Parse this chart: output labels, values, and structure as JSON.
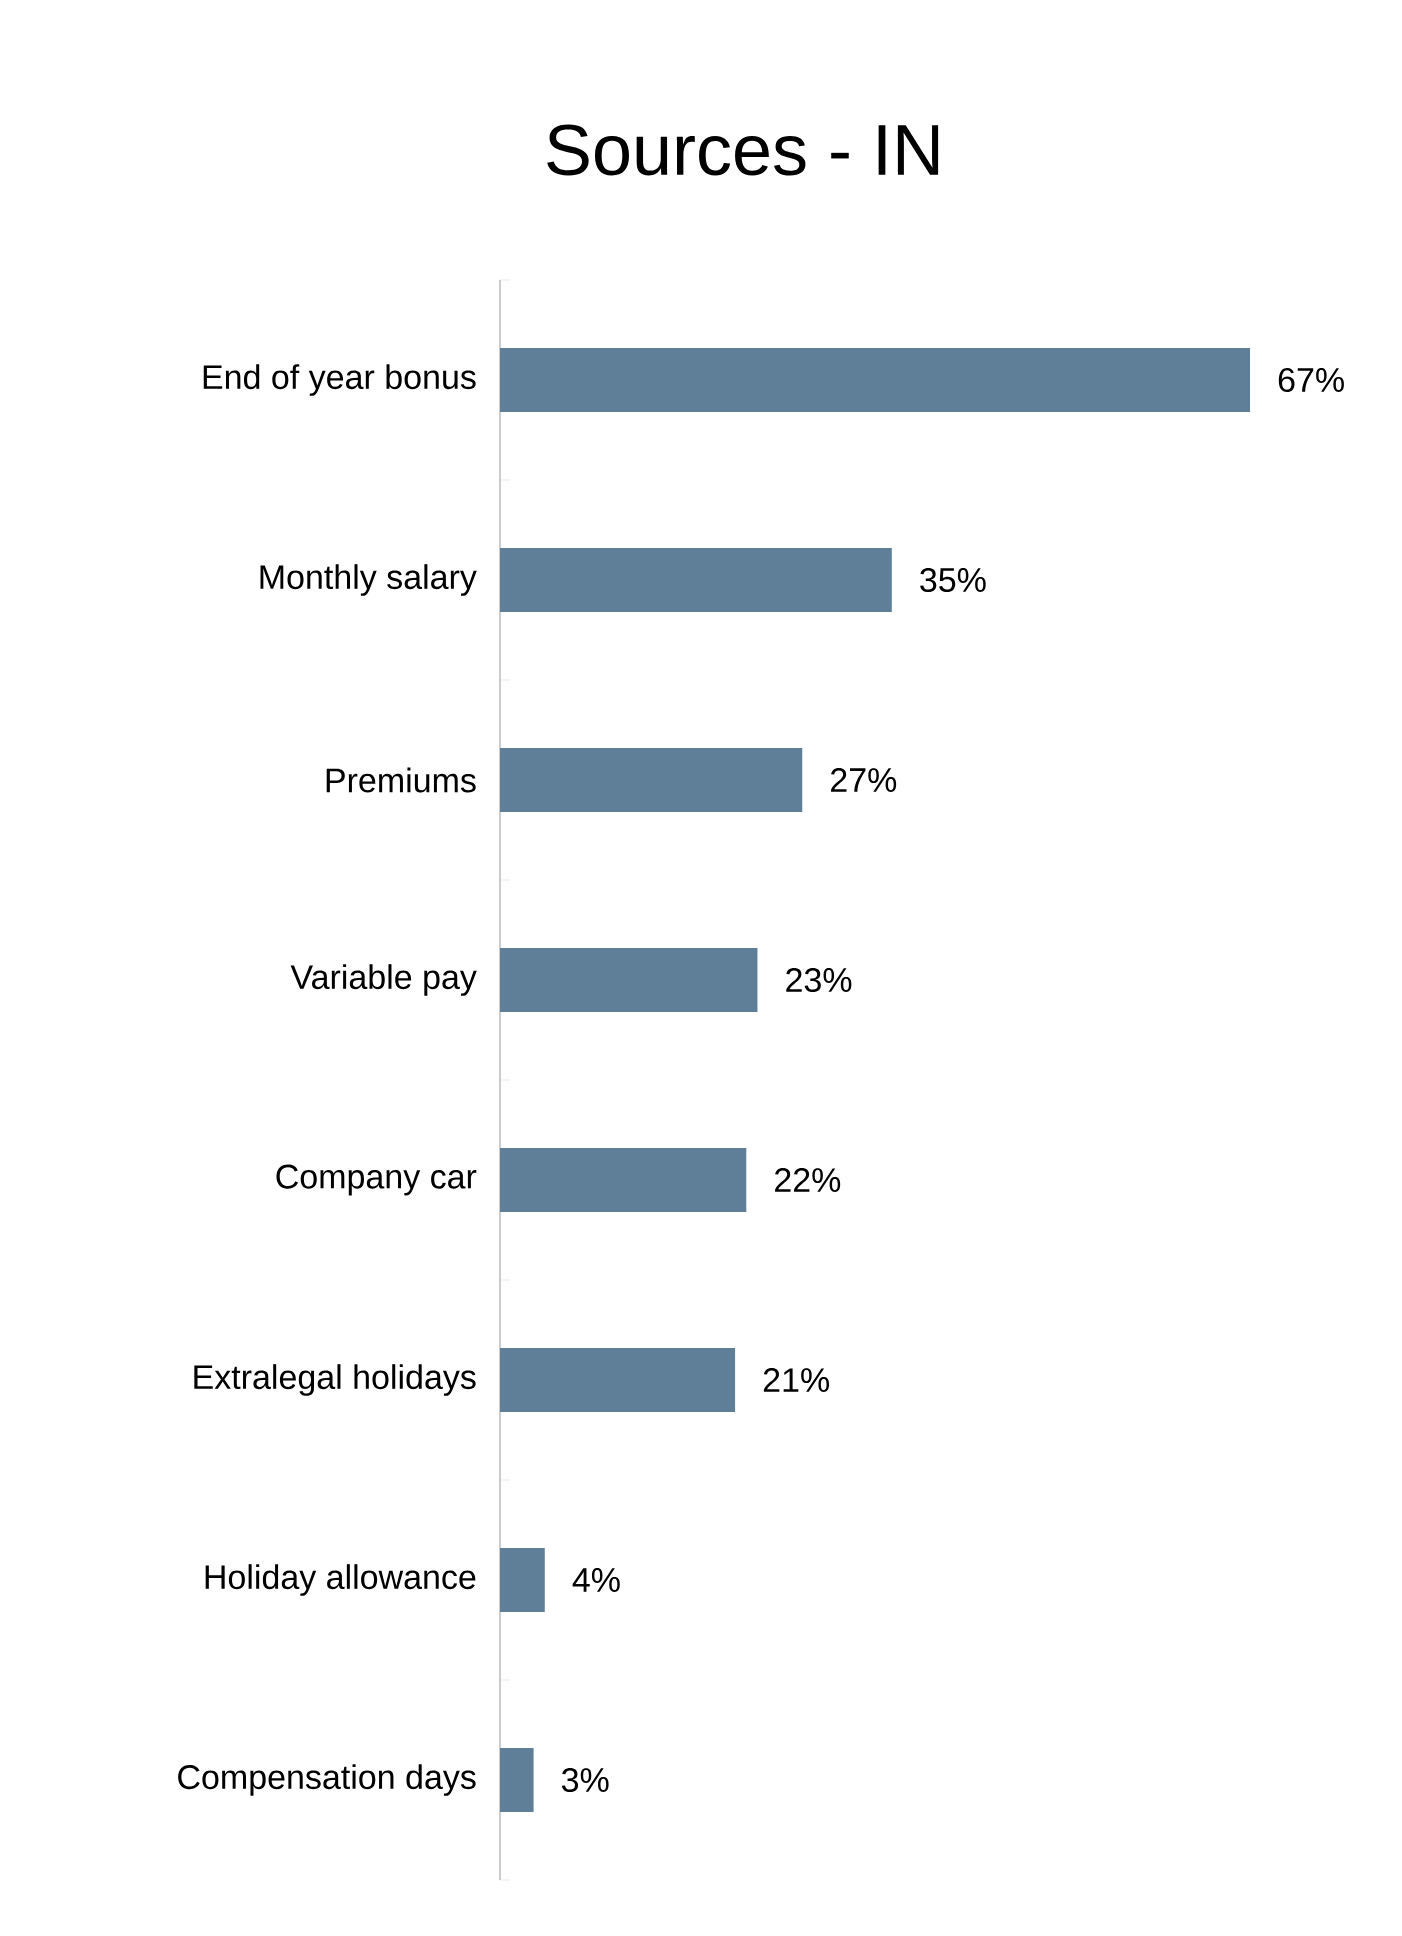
{
  "chart_data": {
    "type": "bar",
    "orientation": "horizontal",
    "title": "Sources - IN",
    "categories": [
      "End of year bonus",
      "Monthly salary",
      "Premiums",
      "Variable pay",
      "Company car",
      "Extralegal holidays",
      "Holiday allowance",
      "Compensation days"
    ],
    "values": [
      67,
      35,
      27,
      23,
      22,
      21,
      4,
      3
    ],
    "value_labels": [
      "67%",
      "35%",
      "27%",
      "23%",
      "22%",
      "21%",
      "4%",
      "3%"
    ],
    "color": "#5f7f99"
  }
}
